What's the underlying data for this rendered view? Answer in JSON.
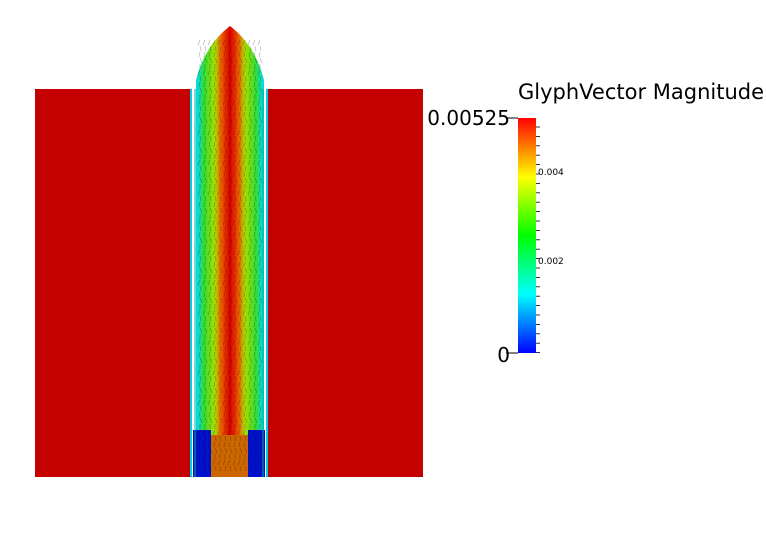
{
  "legend": {
    "title": "GlyphVector Magnitude",
    "max_label": "0.00525",
    "min_label": "0",
    "ticks": [
      {
        "label": "0.004",
        "value": 0.004
      },
      {
        "label": "0.002",
        "value": 0.002
      }
    ],
    "range": [
      0,
      0.00525
    ]
  },
  "colors": {
    "background": "#ffffff",
    "field_red": "#c40000",
    "colormap": [
      "#0000ff",
      "#00ffff",
      "#00ff00",
      "#ffff00",
      "#ff0000"
    ]
  }
}
